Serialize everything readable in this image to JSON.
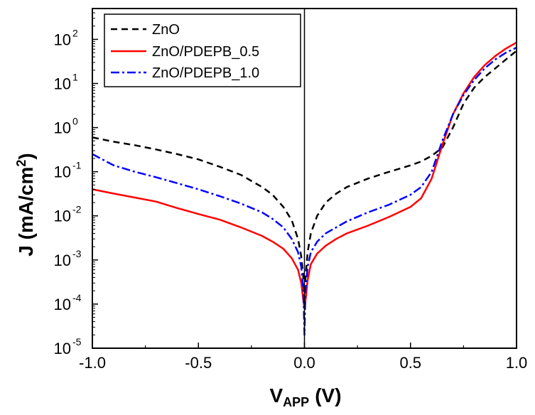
{
  "chart_data": {
    "type": "line",
    "xlabel": {
      "main": "V",
      "sub": "APP",
      "unit": "(V)"
    },
    "ylabel": {
      "main": "J (mA/cm",
      "sup": "2",
      "close": ")"
    },
    "xlim": [
      -1.0,
      1.0
    ],
    "ylim": [
      1e-05,
      500
    ],
    "yscale": "log",
    "xticks": [
      -1.0,
      -0.5,
      0.0,
      0.5,
      1.0
    ],
    "xtick_labels": [
      "-1.0",
      "-0.5",
      "0.0",
      "0.5",
      "1.0"
    ],
    "yticks": [
      1e-05,
      0.0001,
      0.001,
      0.01,
      0.1,
      1,
      10,
      100
    ],
    "ytick_labels": [
      {
        "base": "10",
        "exp": "-5"
      },
      {
        "base": "10",
        "exp": "-4"
      },
      {
        "base": "10",
        "exp": "-3"
      },
      {
        "base": "10",
        "exp": "-2"
      },
      {
        "base": "10",
        "exp": "-1"
      },
      {
        "base": "10",
        "exp": "0"
      },
      {
        "base": "10",
        "exp": "1"
      },
      {
        "base": "10",
        "exp": "2"
      }
    ],
    "legend_position": "top-left",
    "grid": false,
    "series": [
      {
        "name": "ZnO",
        "color": "#000000",
        "dash": "dashed",
        "x": [
          -1.0,
          -0.9,
          -0.8,
          -0.7,
          -0.6,
          -0.5,
          -0.4,
          -0.3,
          -0.2,
          -0.15,
          -0.1,
          -0.06,
          -0.03,
          -0.015,
          -0.005,
          0.0,
          0.005,
          0.015,
          0.03,
          0.06,
          0.1,
          0.15,
          0.2,
          0.3,
          0.4,
          0.5,
          0.55,
          0.6,
          0.65,
          0.7,
          0.75,
          0.8,
          0.85,
          0.9,
          0.95,
          1.0
        ],
        "y": [
          0.6,
          0.48,
          0.4,
          0.32,
          0.25,
          0.19,
          0.13,
          0.085,
          0.045,
          0.03,
          0.016,
          0.008,
          0.003,
          0.0012,
          0.0004,
          0.0001,
          0.0004,
          0.0015,
          0.004,
          0.01,
          0.02,
          0.032,
          0.045,
          0.07,
          0.1,
          0.14,
          0.17,
          0.23,
          0.35,
          1.0,
          3.5,
          8,
          14,
          22,
          35,
          55
        ]
      },
      {
        "name": "ZnO/PDEPB_0.5",
        "color": "#ff0000",
        "dash": "solid",
        "x": [
          -1.0,
          -0.9,
          -0.8,
          -0.7,
          -0.6,
          -0.5,
          -0.4,
          -0.3,
          -0.2,
          -0.15,
          -0.1,
          -0.06,
          -0.03,
          -0.015,
          -0.005,
          0.0,
          0.005,
          0.015,
          0.03,
          0.06,
          0.1,
          0.15,
          0.2,
          0.3,
          0.4,
          0.5,
          0.55,
          0.6,
          0.65,
          0.7,
          0.75,
          0.8,
          0.85,
          0.9,
          0.95,
          1.0
        ],
        "y": [
          0.04,
          0.032,
          0.026,
          0.021,
          0.015,
          0.011,
          0.0082,
          0.0055,
          0.0035,
          0.0026,
          0.0018,
          0.0011,
          0.0006,
          0.0003,
          0.00012,
          8e-05,
          0.00012,
          0.00035,
          0.0008,
          0.0014,
          0.0021,
          0.003,
          0.004,
          0.006,
          0.0095,
          0.016,
          0.025,
          0.07,
          0.4,
          2.0,
          6,
          14,
          26,
          42,
          62,
          85
        ]
      },
      {
        "name": "ZnO/PDEPB_1.0",
        "color": "#0000ff",
        "dash": "dashdot",
        "x": [
          -1.0,
          -0.9,
          -0.8,
          -0.7,
          -0.6,
          -0.5,
          -0.4,
          -0.3,
          -0.2,
          -0.15,
          -0.1,
          -0.06,
          -0.03,
          -0.015,
          -0.005,
          0.0,
          0.005,
          0.015,
          0.03,
          0.06,
          0.1,
          0.15,
          0.2,
          0.3,
          0.4,
          0.5,
          0.55,
          0.6,
          0.65,
          0.7,
          0.75,
          0.8,
          0.85,
          0.9,
          0.95,
          1.0
        ],
        "y": [
          0.25,
          0.14,
          0.1,
          0.075,
          0.055,
          0.04,
          0.028,
          0.019,
          0.012,
          0.0085,
          0.0055,
          0.003,
          0.0015,
          0.0007,
          0.0002,
          2e-05,
          0.0002,
          0.0007,
          0.0015,
          0.0026,
          0.004,
          0.0055,
          0.0075,
          0.012,
          0.018,
          0.03,
          0.045,
          0.1,
          0.5,
          2.0,
          5.5,
          12,
          22,
          35,
          50,
          65
        ]
      }
    ]
  }
}
